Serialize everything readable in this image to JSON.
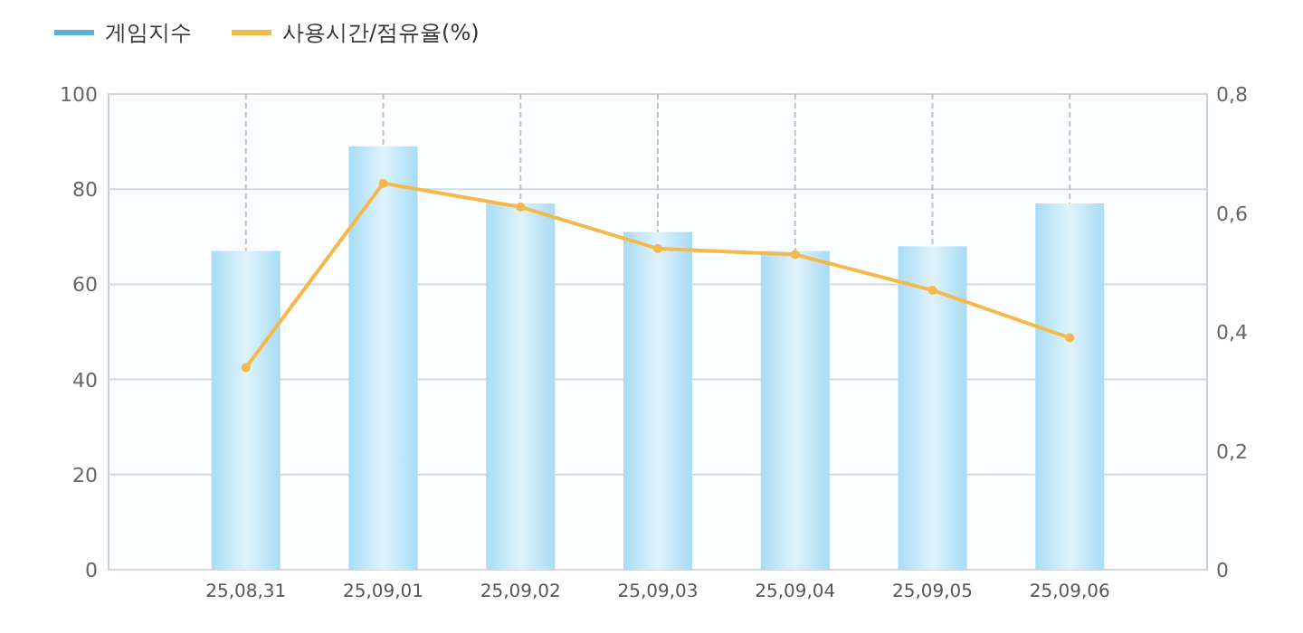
{
  "chart_data": {
    "type": "bar",
    "categories": [
      "25,08,31",
      "25,09,01",
      "25,09,02",
      "25,09,03",
      "25,09,04",
      "25,09,05",
      "25,09,06"
    ],
    "series": [
      {
        "name": "게임지수",
        "color": "#a8dcf5",
        "values": [
          67,
          89,
          77,
          71,
          67,
          68,
          77
        ]
      },
      {
        "name": "사용시간/점유율(%)",
        "type": "line",
        "axis": "y2",
        "color": "#f5b84a",
        "marker": "circle",
        "values": [
          0.34,
          0.65,
          0.61,
          0.54,
          0.53,
          0.47,
          0.39
        ]
      }
    ],
    "ylim": [
      0,
      100
    ],
    "yticks": [
      0,
      20,
      40,
      60,
      80,
      100
    ],
    "y2lim": [
      0,
      0.8
    ],
    "y2ticks": [
      0,
      {
        "value": 0.2,
        "label": "0,2"
      },
      {
        "value": 0.4,
        "label": "0,4"
      },
      {
        "value": 0.6,
        "label": "0,6"
      },
      {
        "value": 0.8,
        "label": "0,8"
      }
    ],
    "grid": true,
    "legend": "top left"
  }
}
